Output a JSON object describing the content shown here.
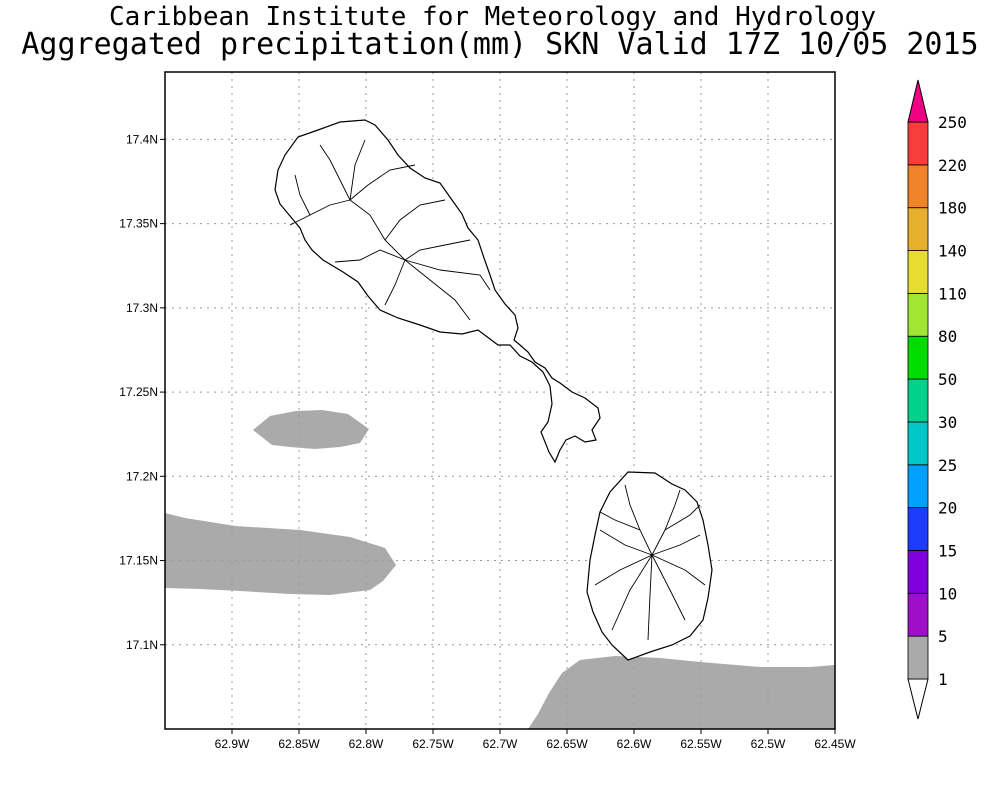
{
  "title": {
    "line1": "Caribbean Institute for Meteorology and Hydrology",
    "line2": "Aggregated precipitation(mm) SKN Valid 17Z 10/05 2015"
  },
  "map": {
    "lon_min": -62.95,
    "lon_max": -62.45,
    "lat_min": 17.05,
    "lat_max": 17.44,
    "grid": true,
    "lat_ticks": [
      {
        "value": 17.4,
        "label": "17.4N"
      },
      {
        "value": 17.35,
        "label": "17.35N"
      },
      {
        "value": 17.3,
        "label": "17.3N"
      },
      {
        "value": 17.25,
        "label": "17.25N"
      },
      {
        "value": 17.2,
        "label": "17.2N"
      },
      {
        "value": 17.15,
        "label": "17.15N"
      },
      {
        "value": 17.1,
        "label": "17.1N"
      }
    ],
    "lon_ticks": [
      {
        "value": -62.9,
        "label": "62.9W"
      },
      {
        "value": -62.85,
        "label": "62.85W"
      },
      {
        "value": -62.8,
        "label": "62.8W"
      },
      {
        "value": -62.75,
        "label": "62.75W"
      },
      {
        "value": -62.7,
        "label": "62.7W"
      },
      {
        "value": -62.65,
        "label": "62.65W"
      },
      {
        "value": -62.6,
        "label": "62.6W"
      },
      {
        "value": -62.55,
        "label": "62.55W"
      },
      {
        "value": -62.5,
        "label": "62.5W"
      },
      {
        "value": -62.45,
        "label": "62.45W"
      }
    ],
    "precip_fill_color": "#aaaaaa",
    "island_outline_color": "#000000"
  },
  "colorbar": {
    "levels": [
      "1",
      "5",
      "10",
      "15",
      "20",
      "25",
      "30",
      "50",
      "80",
      "110",
      "140",
      "180",
      "220",
      "250"
    ],
    "colors": [
      "#aaaaaa",
      "#a00fc8",
      "#7f00dc",
      "#1e3cff",
      "#00a0ff",
      "#00c8c8",
      "#00d28c",
      "#00dc00",
      "#a0e632",
      "#e6dc32",
      "#e6af2d",
      "#f08228",
      "#fa3c3c",
      "#f00082"
    ],
    "below_color": "#ffffff"
  }
}
